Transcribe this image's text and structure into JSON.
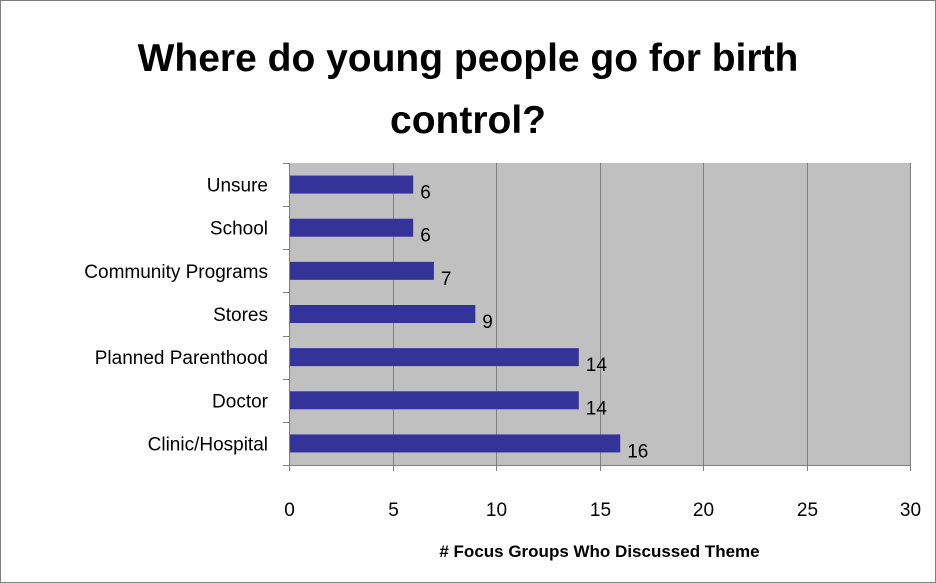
{
  "chart_data": {
    "type": "bar",
    "orientation": "horizontal",
    "title_lines": [
      "Where do young people go for birth",
      "control?"
    ],
    "xlabel": "# Focus Groups Who Discussed Theme",
    "ylabel": "",
    "categories": [
      "Unsure",
      "School",
      "Community Programs",
      "Stores",
      "Planned Parenthood",
      "Doctor",
      "Clinic/Hospital"
    ],
    "values": [
      6,
      6,
      7,
      9,
      14,
      14,
      16
    ],
    "data_labels": [
      "6",
      "6",
      "7",
      "9",
      "14",
      "14",
      "16"
    ],
    "xlim": [
      0,
      30
    ],
    "x_ticks": [
      "0",
      "5",
      "10",
      "15",
      "20",
      "25",
      "30"
    ],
    "grid": "vertical",
    "legend": "none",
    "colors": {
      "bar": "#333399",
      "plot_background": "#c0c0c0",
      "gridline": "#808080",
      "frame": "#7f7f7f"
    }
  }
}
